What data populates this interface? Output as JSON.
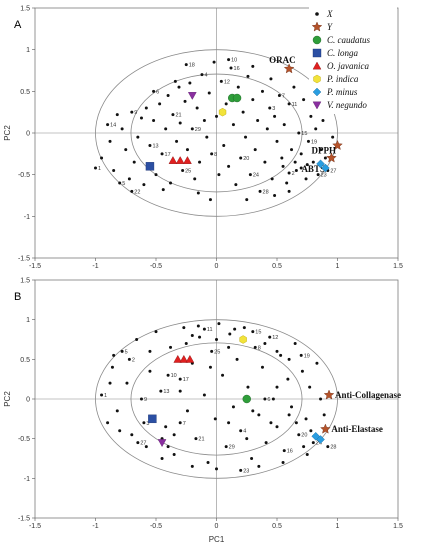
{
  "colors": {
    "x_points": "#111111",
    "y_star": "#b5532a",
    "c_caudatus": "#2f9e3a",
    "c_longa": "#2b4fa3",
    "o_javanica": "#e02020",
    "p_indica": "#f2e33a",
    "p_minus": "#2a9de0",
    "v_negundo": "#8a2fa0"
  },
  "legend": {
    "x": "X",
    "y": "Y",
    "c_caudatus": "C. caudatus",
    "c_longa": "C. longa",
    "o_javanica": "O. javanica",
    "p_indica": "P. indica",
    "p_minus": "P. minus",
    "v_negundo": "V. negundo"
  },
  "chart_data": [
    {
      "type": "scatter",
      "panel": "A",
      "xlabel": "",
      "ylabel": "PC2",
      "xlim": [
        -1.5,
        1.5
      ],
      "ylim": [
        -1.5,
        1.5
      ],
      "xticks": [
        -1.5,
        -1,
        -0.5,
        0,
        0.5,
        1,
        1.5
      ],
      "yticks": [
        -1.5,
        -1,
        -0.5,
        0,
        0.5,
        1,
        1.5
      ],
      "grid": false,
      "legend_position": "top-right",
      "variables": [
        {
          "label": "ORAC",
          "x": 0.6,
          "y": 0.77
        },
        {
          "label": "DPPH",
          "x": 1.0,
          "y": -0.15
        },
        {
          "label": "ABTS",
          "x": 0.95,
          "y": -0.3
        }
      ],
      "samples": [
        {
          "name": "C. caudatus",
          "marker": "circle",
          "points": [
            [
              0.13,
              0.42
            ],
            [
              0.17,
              0.42
            ]
          ]
        },
        {
          "name": "C. longa",
          "marker": "square",
          "points": [
            [
              -0.55,
              -0.4
            ]
          ]
        },
        {
          "name": "O. javanica",
          "marker": "triangle",
          "points": [
            [
              -0.36,
              -0.33
            ],
            [
              -0.3,
              -0.33
            ],
            [
              -0.24,
              -0.33
            ]
          ]
        },
        {
          "name": "P. indica",
          "marker": "hexagon",
          "points": [
            [
              0.05,
              0.25
            ]
          ]
        },
        {
          "name": "P. minus",
          "marker": "diamond",
          "points": [
            [
              0.86,
              -0.37
            ],
            [
              0.9,
              -0.42
            ]
          ]
        },
        {
          "name": "V. negundo",
          "marker": "inverted-triangle",
          "points": [
            [
              -0.2,
              0.45
            ]
          ]
        }
      ],
      "x_points": [
        [
          -1.0,
          -0.42
        ],
        [
          -0.95,
          -0.3
        ],
        [
          -0.88,
          -0.1
        ],
        [
          -0.85,
          -0.45
        ],
        [
          -0.8,
          -0.6
        ],
        [
          -0.78,
          0.05
        ],
        [
          -0.75,
          -0.2
        ],
        [
          -0.72,
          -0.55
        ],
        [
          -0.7,
          0.25
        ],
        [
          -0.65,
          -0.05
        ],
        [
          -0.6,
          -0.62
        ],
        [
          -0.58,
          0.3
        ],
        [
          -0.55,
          -0.15
        ],
        [
          -0.52,
          0.15
        ],
        [
          -0.5,
          -0.5
        ],
        [
          -0.47,
          0.35
        ],
        [
          -0.45,
          -0.25
        ],
        [
          -0.42,
          0.05
        ],
        [
          -0.4,
          0.45
        ],
        [
          -0.38,
          -0.6
        ],
        [
          -0.36,
          0.22
        ],
        [
          -0.33,
          -0.1
        ],
        [
          -0.31,
          0.55
        ],
        [
          -0.3,
          0.12
        ],
        [
          -0.28,
          -0.45
        ],
        [
          -0.26,
          0.38
        ],
        [
          -0.24,
          -0.2
        ],
        [
          -0.22,
          0.6
        ],
        [
          -0.2,
          0.05
        ],
        [
          -0.18,
          -0.55
        ],
        [
          -0.16,
          0.3
        ],
        [
          -0.14,
          -0.35
        ],
        [
          -0.12,
          0.7
        ],
        [
          -0.1,
          0.15
        ],
        [
          -0.08,
          -0.05
        ],
        [
          -0.06,
          0.48
        ],
        [
          -0.04,
          -0.25
        ],
        [
          -0.02,
          0.85
        ],
        [
          0.0,
          0.2
        ],
        [
          0.02,
          -0.5
        ],
        [
          0.04,
          0.62
        ],
        [
          0.06,
          -0.15
        ],
        [
          0.08,
          0.35
        ],
        [
          0.1,
          -0.4
        ],
        [
          0.12,
          0.78
        ],
        [
          0.14,
          0.1
        ],
        [
          0.16,
          -0.62
        ],
        [
          0.18,
          0.55
        ],
        [
          0.2,
          -0.3
        ],
        [
          0.22,
          0.25
        ],
        [
          0.24,
          -0.05
        ],
        [
          0.26,
          0.68
        ],
        [
          0.28,
          -0.5
        ],
        [
          0.3,
          0.4
        ],
        [
          0.32,
          -0.2
        ],
        [
          0.34,
          0.15
        ],
        [
          0.36,
          -0.7
        ],
        [
          0.38,
          0.5
        ],
        [
          0.4,
          -0.35
        ],
        [
          0.42,
          0.05
        ],
        [
          0.44,
          0.3
        ],
        [
          0.46,
          -0.55
        ],
        [
          0.48,
          0.2
        ],
        [
          0.5,
          -0.1
        ],
        [
          0.52,
          0.45
        ],
        [
          0.54,
          -0.3
        ],
        [
          0.56,
          0.1
        ],
        [
          0.58,
          -0.6
        ],
        [
          0.6,
          0.35
        ],
        [
          0.62,
          -0.2
        ],
        [
          0.64,
          0.55
        ],
        [
          0.66,
          -0.45
        ],
        [
          0.68,
          0.0
        ],
        [
          0.7,
          -0.25
        ],
        [
          0.72,
          0.4
        ],
        [
          0.74,
          -0.55
        ],
        [
          0.76,
          -0.1
        ],
        [
          0.78,
          0.2
        ],
        [
          0.8,
          -0.35
        ],
        [
          0.82,
          0.05
        ],
        [
          0.84,
          -0.5
        ],
        [
          0.86,
          -0.2
        ],
        [
          0.88,
          0.15
        ],
        [
          0.9,
          -0.3
        ],
        [
          0.92,
          -0.45
        ],
        [
          0.75,
          -0.38
        ],
        [
          0.7,
          -0.42
        ],
        [
          0.65,
          -0.35
        ],
        [
          0.6,
          -0.48
        ],
        [
          0.55,
          -0.4
        ],
        [
          -0.62,
          0.18
        ],
        [
          -0.68,
          -0.35
        ],
        [
          -0.52,
          0.5
        ],
        [
          -0.44,
          -0.68
        ],
        [
          -0.34,
          0.62
        ],
        [
          -0.15,
          -0.72
        ],
        [
          0.1,
          0.88
        ],
        [
          0.25,
          -0.8
        ],
        [
          0.45,
          0.65
        ],
        [
          0.6,
          -0.7
        ],
        [
          -0.9,
          0.1
        ],
        [
          -0.82,
          0.22
        ],
        [
          0.96,
          -0.05
        ],
        [
          0.94,
          0.25
        ],
        [
          -0.25,
          0.82
        ],
        [
          0.3,
          0.8
        ],
        [
          -0.05,
          -0.8
        ],
        [
          0.48,
          -0.75
        ],
        [
          -0.7,
          -0.7
        ],
        [
          0.82,
          0.45
        ]
      ]
    },
    {
      "type": "scatter",
      "panel": "B",
      "xlabel": "PC1",
      "ylabel": "PC2",
      "xlim": [
        -1.5,
        1.5
      ],
      "ylim": [
        -1.5,
        1.5
      ],
      "xticks": [
        -1.5,
        -1,
        -0.5,
        0,
        0.5,
        1,
        1.5
      ],
      "yticks": [
        -1.5,
        -1,
        -0.5,
        0,
        0.5,
        1,
        1.5
      ],
      "grid": false,
      "variables": [
        {
          "label": "Anti-Collagenase",
          "x": 0.93,
          "y": 0.05
        },
        {
          "label": "Anti-Elastase",
          "x": 0.9,
          "y": -0.38
        }
      ],
      "samples": [
        {
          "name": "C. caudatus",
          "marker": "circle",
          "points": [
            [
              0.25,
              0.0
            ]
          ]
        },
        {
          "name": "C. longa",
          "marker": "square",
          "points": [
            [
              -0.53,
              -0.25
            ]
          ]
        },
        {
          "name": "O. javanica",
          "marker": "triangle",
          "points": [
            [
              -0.32,
              0.5
            ],
            [
              -0.27,
              0.5
            ],
            [
              -0.22,
              0.5
            ]
          ]
        },
        {
          "name": "P. indica",
          "marker": "hexagon",
          "points": [
            [
              0.22,
              0.75
            ]
          ]
        },
        {
          "name": "P. minus",
          "marker": "diamond",
          "points": [
            [
              0.82,
              -0.47
            ],
            [
              0.86,
              -0.51
            ]
          ]
        },
        {
          "name": "V. negundo",
          "marker": "inverted-triangle",
          "points": [
            [
              -0.45,
              -0.55
            ]
          ]
        }
      ],
      "x_points": [
        [
          -0.95,
          0.05
        ],
        [
          -0.9,
          -0.3
        ],
        [
          -0.86,
          0.4
        ],
        [
          -0.82,
          -0.15
        ],
        [
          -0.78,
          0.6
        ],
        [
          -0.74,
          0.2
        ],
        [
          -0.7,
          -0.45
        ],
        [
          -0.66,
          0.75
        ],
        [
          -0.62,
          0.0
        ],
        [
          -0.58,
          -0.6
        ],
        [
          -0.55,
          0.35
        ],
        [
          -0.5,
          0.85
        ],
        [
          -0.46,
          0.1
        ],
        [
          -0.42,
          -0.35
        ],
        [
          -0.38,
          0.65
        ],
        [
          -0.35,
          -0.7
        ],
        [
          -0.3,
          0.25
        ],
        [
          -0.27,
          0.9
        ],
        [
          -0.24,
          -0.15
        ],
        [
          -0.2,
          0.45
        ],
        [
          -0.17,
          -0.5
        ],
        [
          -0.14,
          0.78
        ],
        [
          -0.1,
          0.05
        ],
        [
          -0.07,
          -0.8
        ],
        [
          -0.04,
          0.6
        ],
        [
          -0.01,
          -0.25
        ],
        [
          0.02,
          0.95
        ],
        [
          0.05,
          0.3
        ],
        [
          0.08,
          -0.6
        ],
        [
          0.11,
          0.82
        ],
        [
          0.14,
          -0.1
        ],
        [
          0.17,
          0.5
        ],
        [
          0.2,
          -0.4
        ],
        [
          0.23,
          0.9
        ],
        [
          0.26,
          0.15
        ],
        [
          0.29,
          -0.75
        ],
        [
          0.32,
          0.65
        ],
        [
          0.35,
          -0.2
        ],
        [
          0.38,
          0.4
        ],
        [
          0.41,
          -0.55
        ],
        [
          0.44,
          0.78
        ],
        [
          0.47,
          0.0
        ],
        [
          0.5,
          -0.35
        ],
        [
          0.53,
          0.55
        ],
        [
          0.56,
          -0.65
        ],
        [
          0.59,
          0.25
        ],
        [
          0.62,
          -0.1
        ],
        [
          0.65,
          0.7
        ],
        [
          0.68,
          -0.45
        ],
        [
          0.71,
          0.35
        ],
        [
          0.74,
          -0.25
        ],
        [
          0.77,
          0.15
        ],
        [
          0.8,
          -0.55
        ],
        [
          0.83,
          0.45
        ],
        [
          0.86,
          0.0
        ],
        [
          0.89,
          -0.2
        ],
        [
          0.92,
          -0.6
        ],
        [
          0.78,
          -0.4
        ],
        [
          0.72,
          -0.6
        ],
        [
          0.66,
          -0.3
        ],
        [
          -0.6,
          -0.3
        ],
        [
          -0.45,
          -0.5
        ],
        [
          -0.4,
          -0.6
        ],
        [
          -0.35,
          -0.45
        ],
        [
          -0.3,
          -0.3
        ],
        [
          -0.25,
          0.7
        ],
        [
          -0.2,
          0.8
        ],
        [
          -0.15,
          0.92
        ],
        [
          -0.1,
          0.88
        ],
        [
          0.0,
          0.75
        ],
        [
          0.1,
          0.65
        ],
        [
          0.15,
          0.88
        ],
        [
          0.3,
          0.85
        ],
        [
          0.4,
          0.7
        ],
        [
          0.5,
          0.6
        ],
        [
          0.6,
          0.5
        ],
        [
          0.7,
          0.55
        ],
        [
          0.75,
          -0.7
        ],
        [
          0.55,
          -0.8
        ],
        [
          0.35,
          -0.85
        ],
        [
          0.2,
          -0.9
        ],
        [
          0.0,
          -0.88
        ],
        [
          -0.2,
          -0.85
        ],
        [
          -0.45,
          -0.75
        ],
        [
          -0.65,
          -0.55
        ],
        [
          -0.8,
          -0.4
        ],
        [
          -0.88,
          0.2
        ],
        [
          -0.85,
          0.55
        ],
        [
          -0.72,
          0.5
        ],
        [
          -0.55,
          0.6
        ],
        [
          0.6,
          -0.2
        ],
        [
          0.5,
          0.15
        ],
        [
          0.4,
          0.0
        ],
        [
          0.3,
          -0.15
        ],
        [
          -0.05,
          0.4
        ],
        [
          -0.3,
          0.1
        ],
        [
          -0.4,
          0.3
        ],
        [
          0.1,
          -0.3
        ],
        [
          0.25,
          -0.5
        ],
        [
          0.45,
          -0.3
        ]
      ]
    }
  ]
}
